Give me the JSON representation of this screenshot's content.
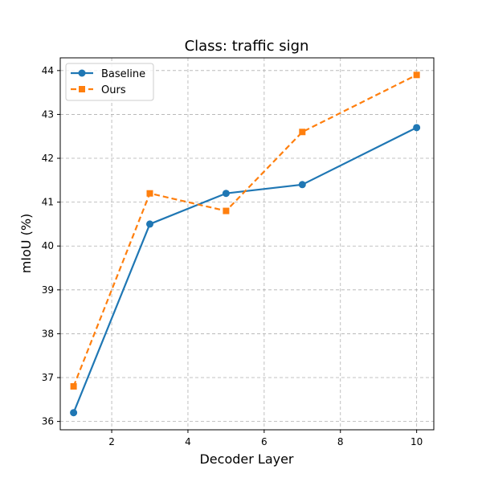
{
  "chart_data": {
    "type": "line",
    "title": "Class: traffic sign",
    "xlabel": "Decoder Layer",
    "ylabel": "mIoU (%)",
    "xlim": [
      0.65,
      10.45
    ],
    "ylim": [
      35.81,
      44.29
    ],
    "xticks": [
      2,
      4,
      6,
      8,
      10
    ],
    "yticks": [
      36,
      37,
      38,
      39,
      40,
      41,
      42,
      43,
      44
    ],
    "grid": true,
    "legend_position": "top-left",
    "series": [
      {
        "name": "Baseline",
        "color": "#1f77b4",
        "marker": "circle",
        "linestyle": "solid",
        "x": [
          1,
          3,
          5,
          7,
          10
        ],
        "y": [
          36.2,
          40.5,
          41.2,
          41.4,
          42.7
        ]
      },
      {
        "name": "Ours",
        "color": "#ff7f0e",
        "marker": "square",
        "linestyle": "dashed",
        "x": [
          1,
          3,
          5,
          7,
          10
        ],
        "y": [
          36.8,
          41.2,
          40.8,
          42.6,
          43.9
        ]
      }
    ]
  }
}
